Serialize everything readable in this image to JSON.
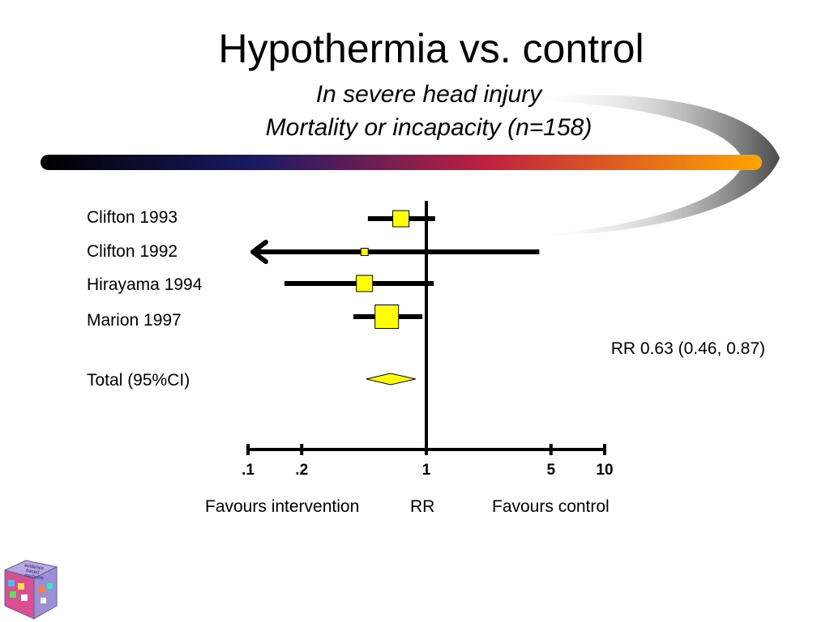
{
  "slide": {
    "title": "Hypothermia vs. control",
    "subtitle_1": "In severe head injury",
    "subtitle_2": "Mortality or incapacity (n=158)",
    "summary_text": "RR 0.63 (0.46, 0.87)",
    "favours_left": "Favours intervention",
    "axis_name": "RR",
    "favours_right": "Favours control",
    "logo_text": [
      "evidence",
      "based",
      "medicine"
    ]
  },
  "colors": {
    "marker_fill": "#ffff00",
    "lines": "#000000",
    "swoosh_start": "#000000",
    "swoosh_mid": "#1a1a66",
    "swoosh_red": "#c02040",
    "swoosh_end": "#ffa500"
  },
  "chart_data": {
    "type": "forest",
    "scale": "log",
    "xlim": [
      0.1,
      10
    ],
    "xticks": [
      0.1,
      0.2,
      1,
      5,
      10
    ],
    "xtick_labels": [
      ".1",
      ".2",
      "1",
      "5",
      "10"
    ],
    "reference_line": 1,
    "studies": [
      {
        "name": "Clifton 1993",
        "rr": 0.72,
        "ci_low": 0.47,
        "ci_high": 1.12,
        "weight": "medium",
        "ci_low_truncated": false
      },
      {
        "name": "Clifton 1992",
        "rr": 0.45,
        "ci_low": 0.1,
        "ci_high": 4.3,
        "weight": "small",
        "ci_low_truncated": true
      },
      {
        "name": "Hirayama 1994",
        "rr": 0.45,
        "ci_low": 0.16,
        "ci_high": 1.1,
        "weight": "medium",
        "ci_low_truncated": false
      },
      {
        "name": "Marion 1997",
        "rr": 0.6,
        "ci_low": 0.39,
        "ci_high": 0.95,
        "weight": "large",
        "ci_low_truncated": false
      }
    ],
    "total": {
      "name": "Total (95%CI)",
      "rr": 0.63,
      "ci_low": 0.46,
      "ci_high": 0.87
    }
  }
}
